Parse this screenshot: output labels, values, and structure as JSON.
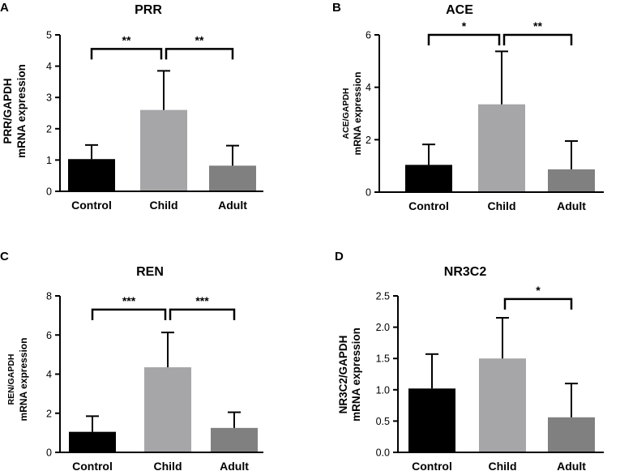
{
  "chart_data": [
    {
      "panel": "A",
      "type": "bar",
      "title": "PRR",
      "ylabel_line1": "PRR/GAPDH",
      "ylabel_line2": "mRNA expression",
      "categories": [
        "Control",
        "Child",
        "Adult"
      ],
      "values": [
        1.03,
        2.6,
        0.82
      ],
      "errors": [
        0.45,
        1.25,
        0.64
      ],
      "ylim": [
        0,
        5
      ],
      "yticks": [
        0,
        1,
        2,
        3,
        4,
        5
      ],
      "ytick_labels": [
        "0",
        "1",
        "2",
        "3",
        "4",
        "5"
      ],
      "bar_colors": [
        "#000000",
        "#a6a6a8",
        "#808080"
      ],
      "significance": [
        {
          "from": 0,
          "to": 1,
          "label": "**",
          "y": 4.55
        },
        {
          "from": 1,
          "to": 2,
          "label": "**",
          "y": 4.55
        }
      ]
    },
    {
      "panel": "B",
      "type": "bar",
      "title": "ACE",
      "ylabel_line1": "ACE/GAPDH",
      "ylabel_line2": "mRNA expression",
      "categories": [
        "Control",
        "Child",
        "Adult"
      ],
      "values": [
        1.04,
        3.35,
        0.87
      ],
      "errors": [
        0.78,
        2.02,
        1.08
      ],
      "ylim": [
        0,
        6
      ],
      "yticks": [
        0,
        2,
        4,
        6
      ],
      "ytick_labels": [
        "0",
        "2",
        "4",
        "6"
      ],
      "bar_colors": [
        "#000000",
        "#a6a6a8",
        "#808080"
      ],
      "significance": [
        {
          "from": 0,
          "to": 1,
          "label": "*",
          "y": 6.0
        },
        {
          "from": 1,
          "to": 2,
          "label": "**",
          "y": 6.0
        }
      ]
    },
    {
      "panel": "C",
      "type": "bar",
      "title": "REN",
      "ylabel_line1": "REN/GAPDH",
      "ylabel_line2": "mRNA expression",
      "categories": [
        "Control",
        "Child",
        "Adult"
      ],
      "values": [
        1.05,
        4.35,
        1.25
      ],
      "errors": [
        0.8,
        1.78,
        0.8
      ],
      "ylim": [
        0,
        8
      ],
      "yticks": [
        0,
        2,
        4,
        6,
        8
      ],
      "ytick_labels": [
        "0",
        "2",
        "4",
        "6",
        "8"
      ],
      "bar_colors": [
        "#000000",
        "#a6a6a8",
        "#808080"
      ],
      "significance": [
        {
          "from": 0,
          "to": 1,
          "label": "***",
          "y": 7.3
        },
        {
          "from": 1,
          "to": 2,
          "label": "***",
          "y": 7.3
        }
      ]
    },
    {
      "panel": "D",
      "type": "bar",
      "title": "NR3C2",
      "ylabel_line1": "NR3C2/GAPDH",
      "ylabel_line2": "mRNA expression",
      "categories": [
        "Control",
        "Child",
        "Adult"
      ],
      "values": [
        1.02,
        1.5,
        0.56
      ],
      "errors": [
        0.55,
        0.65,
        0.54
      ],
      "ylim": [
        0,
        2.5
      ],
      "yticks": [
        0,
        0.5,
        1.0,
        1.5,
        2.0,
        2.5
      ],
      "ytick_labels": [
        "0.0",
        "0.5",
        "1.0",
        "1.5",
        "2.0",
        "2.5"
      ],
      "bar_colors": [
        "#000000",
        "#a6a6a8",
        "#808080"
      ],
      "significance": [
        {
          "from": 1,
          "to": 2,
          "label": "*",
          "y": 2.45
        }
      ]
    }
  ]
}
